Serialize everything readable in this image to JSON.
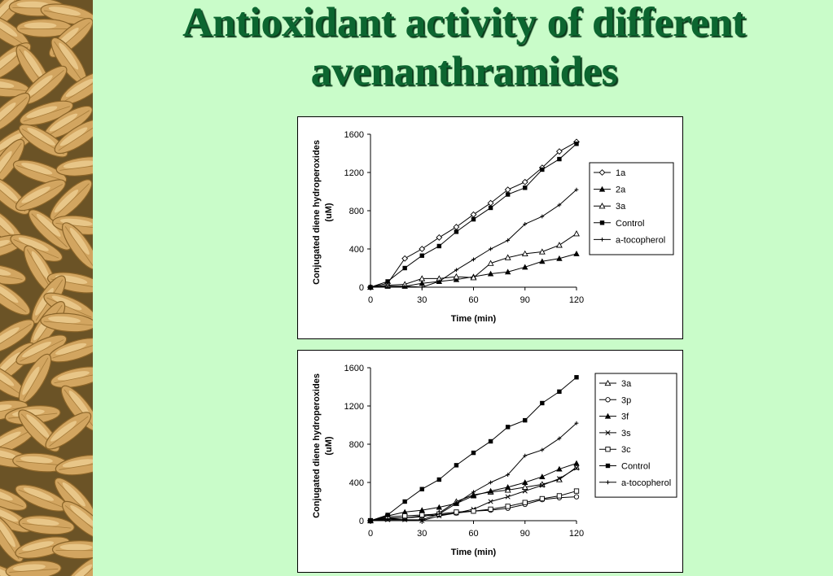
{
  "slide": {
    "title_line1": "Antioxidant activity of different",
    "title_line2": "avenanthramides"
  },
  "background": {
    "slide_color": "#c9fcc9",
    "title_color": "#0c6630",
    "image": "oat-grains"
  },
  "chart_data": [
    {
      "type": "line",
      "xlabel": "Time (min)",
      "ylabel_line1": "Conjugated diene hydroperoxides",
      "ylabel_line2": "(uM)",
      "xlim": [
        0,
        120
      ],
      "ylim": [
        0,
        1600
      ],
      "xticks": [
        "0",
        "30",
        "60",
        "90",
        "120"
      ],
      "yticks": [
        "0",
        "400",
        "800",
        "1200",
        "1600"
      ],
      "grid": false,
      "legend": "right",
      "x": [
        0,
        10,
        20,
        30,
        40,
        50,
        60,
        70,
        80,
        90,
        100,
        110,
        120
      ],
      "series": [
        {
          "name": "1a",
          "marker": "open-diamond",
          "values": [
            0,
            40,
            300,
            400,
            520,
            630,
            760,
            880,
            1020,
            1100,
            1250,
            1420,
            1520
          ]
        },
        {
          "name": "2a",
          "marker": "filled-triangle",
          "values": [
            0,
            10,
            10,
            40,
            60,
            80,
            110,
            140,
            160,
            210,
            270,
            300,
            350
          ]
        },
        {
          "name": "3a",
          "marker": "open-triangle",
          "values": [
            0,
            20,
            30,
            90,
            90,
            110,
            100,
            250,
            310,
            350,
            370,
            440,
            560
          ]
        },
        {
          "name": "Control",
          "marker": "filled-square",
          "values": [
            0,
            60,
            200,
            330,
            430,
            580,
            710,
            830,
            970,
            1040,
            1230,
            1340,
            1500
          ]
        },
        {
          "name": "a-tocopherol",
          "marker": "plus",
          "values": [
            0,
            10,
            10,
            0,
            60,
            180,
            290,
            400,
            490,
            660,
            740,
            860,
            1020
          ]
        }
      ]
    },
    {
      "type": "line",
      "xlabel": "Time (min)",
      "ylabel_line1": "Conjugated diene hydroperoxides",
      "ylabel_line2": "(uM)",
      "xlim": [
        0,
        120
      ],
      "ylim": [
        0,
        1600
      ],
      "xticks": [
        "0",
        "30",
        "60",
        "90",
        "120"
      ],
      "yticks": [
        "0",
        "400",
        "800",
        "1200",
        "1600"
      ],
      "grid": false,
      "legend": "right",
      "x": [
        0,
        10,
        20,
        30,
        40,
        50,
        60,
        70,
        80,
        90,
        100,
        110,
        120
      ],
      "series": [
        {
          "name": "3a",
          "marker": "open-triangle",
          "values": [
            0,
            20,
            30,
            40,
            80,
            200,
            270,
            300,
            320,
            350,
            380,
            430,
            560
          ]
        },
        {
          "name": "3p",
          "marker": "open-circle",
          "values": [
            0,
            30,
            30,
            50,
            60,
            80,
            100,
            110,
            130,
            170,
            220,
            240,
            250
          ]
        },
        {
          "name": "3f",
          "marker": "filled-triangle",
          "values": [
            0,
            50,
            90,
            110,
            140,
            180,
            260,
            310,
            350,
            400,
            460,
            540,
            600
          ]
        },
        {
          "name": "3s",
          "marker": "cross",
          "values": [
            0,
            10,
            10,
            0,
            50,
            80,
            120,
            200,
            250,
            310,
            370,
            440,
            550
          ]
        },
        {
          "name": "3c",
          "marker": "open-square",
          "values": [
            0,
            40,
            50,
            60,
            70,
            90,
            100,
            120,
            150,
            190,
            230,
            260,
            310
          ]
        },
        {
          "name": "Control",
          "marker": "filled-square",
          "values": [
            0,
            60,
            200,
            330,
            430,
            580,
            710,
            830,
            980,
            1050,
            1230,
            1350,
            1500
          ]
        },
        {
          "name": "a-tocopherol",
          "marker": "plus",
          "values": [
            0,
            20,
            10,
            10,
            70,
            180,
            300,
            400,
            480,
            680,
            740,
            860,
            1020
          ]
        }
      ]
    }
  ]
}
